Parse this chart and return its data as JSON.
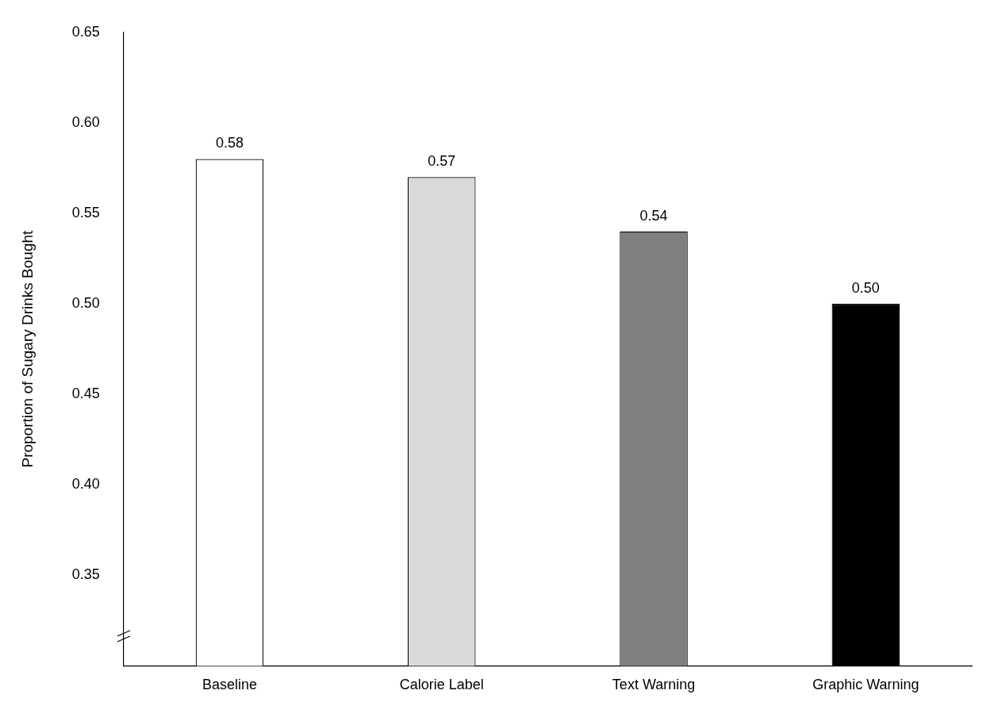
{
  "chart_data": {
    "type": "bar",
    "ylabel": "Proportion of Sugary Drinks Bought",
    "categories": [
      "Baseline",
      "Calorie Label",
      "Text Warning",
      "Graphic Warning"
    ],
    "values": [
      0.58,
      0.57,
      0.54,
      0.5
    ],
    "colors": [
      "#ffffff",
      "#d9d9d9",
      "#808080",
      "#000000"
    ],
    "value_labels": [
      "0.58",
      "0.57",
      "0.54",
      "0.50"
    ],
    "ylim": [
      0.3,
      0.65
    ],
    "yticks": [
      {
        "value": 0.35,
        "label": "0.35"
      },
      {
        "value": 0.4,
        "label": "0.40"
      },
      {
        "value": 0.45,
        "label": "0.45"
      },
      {
        "value": 0.5,
        "label": "0.50"
      },
      {
        "value": 0.55,
        "label": "0.55"
      },
      {
        "value": 0.6,
        "label": "0.60"
      },
      {
        "value": 0.65,
        "label": "0.65"
      }
    ]
  }
}
